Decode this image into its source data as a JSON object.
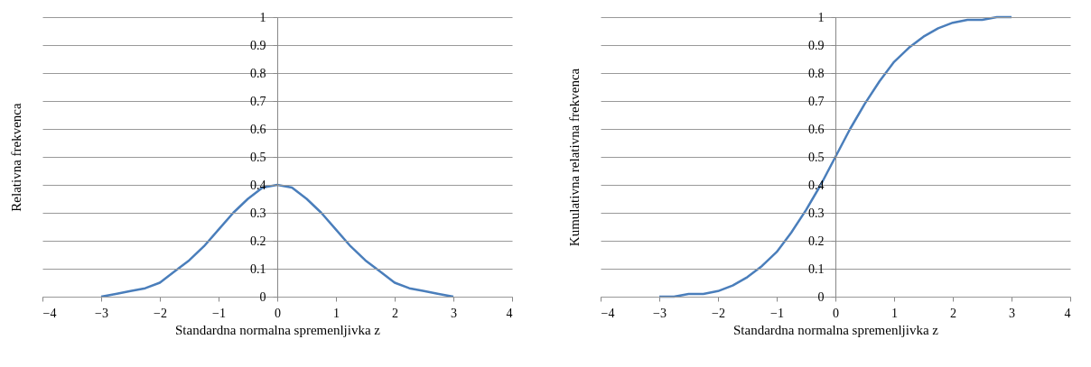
{
  "chart_data": [
    {
      "type": "line",
      "xlabel": "Standardna normalna spremenljivka z",
      "ylabel": "Relativna frekvenca",
      "x": [
        -3,
        -2.75,
        -2.5,
        -2.25,
        -2,
        -1.75,
        -1.5,
        -1.25,
        -1,
        -0.75,
        -0.5,
        -0.25,
        0,
        0.25,
        0.5,
        0.75,
        1,
        1.25,
        1.5,
        1.75,
        2,
        2.25,
        2.5,
        2.75,
        3
      ],
      "series": [
        {
          "color": "#4a7ebb",
          "values": [
            0.0,
            0.01,
            0.02,
            0.03,
            0.05,
            0.09,
            0.13,
            0.18,
            0.24,
            0.3,
            0.35,
            0.39,
            0.4,
            0.39,
            0.35,
            0.3,
            0.24,
            0.18,
            0.13,
            0.09,
            0.05,
            0.03,
            0.02,
            0.01,
            0.0
          ]
        }
      ],
      "xlim": [
        -4,
        4
      ],
      "xticks": [
        -4,
        -3,
        -2,
        -1,
        0,
        1,
        2,
        3,
        4
      ],
      "ylim": [
        0,
        1
      ],
      "yticks": [
        0,
        0.1,
        0.2,
        0.3,
        0.4,
        0.5,
        0.6,
        0.7,
        0.8,
        0.9,
        1
      ],
      "grid": "y",
      "marker": "none",
      "line_style": "solid"
    },
    {
      "type": "line",
      "xlabel": "Standardna normalna spremenljivka z",
      "ylabel": "Kumulativna relativna frekvenca",
      "x": [
        -3,
        -2.75,
        -2.5,
        -2.25,
        -2,
        -1.75,
        -1.5,
        -1.25,
        -1,
        -0.75,
        -0.5,
        -0.25,
        0,
        0.25,
        0.5,
        0.75,
        1,
        1.25,
        1.5,
        1.75,
        2,
        2.25,
        2.5,
        2.75,
        3
      ],
      "series": [
        {
          "color": "#4a7ebb",
          "values": [
            0.0,
            0.0,
            0.01,
            0.01,
            0.02,
            0.04,
            0.07,
            0.11,
            0.16,
            0.23,
            0.31,
            0.4,
            0.5,
            0.6,
            0.69,
            0.77,
            0.84,
            0.89,
            0.93,
            0.96,
            0.98,
            0.99,
            0.99,
            1.0,
            1.0
          ]
        }
      ],
      "xlim": [
        -4,
        4
      ],
      "xticks": [
        -4,
        -3,
        -2,
        -1,
        0,
        1,
        2,
        3,
        4
      ],
      "ylim": [
        0,
        1
      ],
      "yticks": [
        0,
        0.1,
        0.2,
        0.3,
        0.4,
        0.5,
        0.6,
        0.7,
        0.8,
        0.9,
        1
      ],
      "grid": "y",
      "marker": "none",
      "line_style": "solid"
    }
  ]
}
